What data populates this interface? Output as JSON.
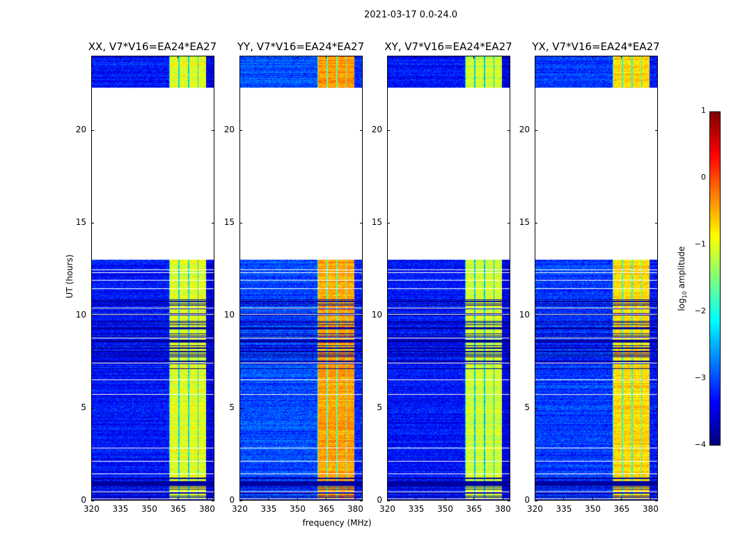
{
  "chart_data": {
    "type": "heatmap",
    "title": "2021-03-17 0.0-24.0",
    "xlabel": "frequency (MHz)",
    "ylabel": "UT (hours)",
    "xlim": [
      320,
      384
    ],
    "ylim": [
      0,
      24
    ],
    "xticks": [
      "320",
      "335",
      "350",
      "365",
      "380"
    ],
    "xtick_values": [
      320,
      335,
      350,
      365,
      380
    ],
    "yticks": [
      "0",
      "5",
      "10",
      "15",
      "20"
    ],
    "ytick_values": [
      0,
      5,
      10,
      15,
      20
    ],
    "data_time_ranges": [
      [
        0,
        13.0
      ],
      [
        22.3,
        24.0
      ]
    ],
    "bright_band_mhz": [
      360.5,
      380
    ],
    "panels": [
      {
        "title": "XX, V7*V16=EA24*EA27",
        "background_log_amp": -3.3,
        "band_log_amp": -1.0
      },
      {
        "title": "YY, V7*V16=EA24*EA27",
        "background_log_amp": -3.0,
        "band_log_amp": -0.4
      },
      {
        "title": "XY, V7*V16=EA24*EA27",
        "background_log_amp": -3.3,
        "band_log_amp": -1.1
      },
      {
        "title": "YX, V7*V16=EA24*EA27",
        "background_log_amp": -3.1,
        "band_log_amp": -0.7
      }
    ],
    "colorbar": {
      "label": "log",
      "label_sub": "10",
      "label_rest": " amplitude",
      "range": [
        -4,
        1
      ],
      "ticks": [
        "−4",
        "−3",
        "−2",
        "−1",
        "0",
        "1"
      ],
      "tick_values": [
        -4,
        -3,
        -2,
        -1,
        0,
        1
      ],
      "colormap": "jet"
    }
  }
}
